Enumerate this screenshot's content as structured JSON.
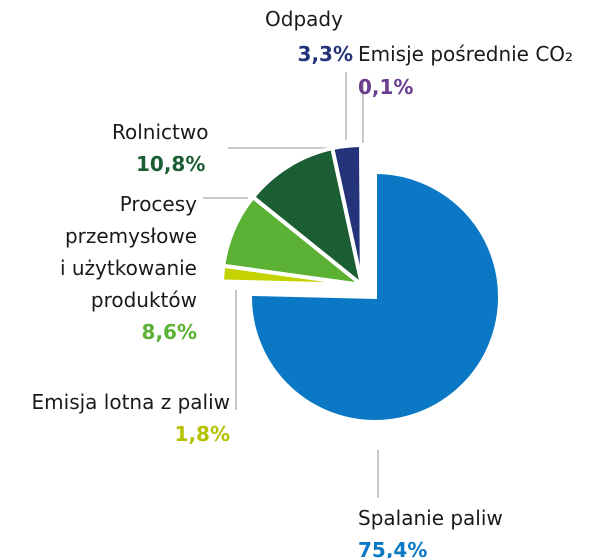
{
  "chart_data": {
    "type": "pie",
    "categories": [
      "Spalanie paliw",
      "Emisja lotna z paliw",
      "Procesy\nprzemysłowe\ni użytkowanie\nproduktów",
      "Rolnictwo",
      "Odpady",
      "Emisje pośrednie CO₂"
    ],
    "values": [
      75.4,
      1.8,
      8.6,
      10.8,
      3.3,
      0.1
    ],
    "value_labels": [
      "75,4%",
      "1,8%",
      "8,6%",
      "10,8%",
      "3,3%",
      "0,1%"
    ],
    "colors": [
      "#0a78c4",
      "#c4d300",
      "#5bb134",
      "#1b5e33",
      "#25347a",
      "#6a3d8f"
    ]
  }
}
